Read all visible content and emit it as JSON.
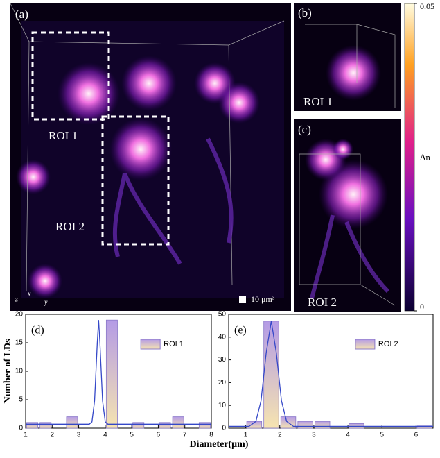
{
  "figure": {
    "panels": {
      "a": "(a)",
      "b": "(b)",
      "c": "(c)"
    },
    "roi_labels": {
      "a1": "ROI 1",
      "a2": "ROI 2",
      "b": "ROI 1",
      "c": "ROI 2"
    },
    "axes_letters": {
      "z": "z",
      "x": "x",
      "y": "y"
    },
    "scale": "10 μm³",
    "colorbar": {
      "label": "Δn",
      "lim": [
        0,
        0.05
      ],
      "ticks": [
        0,
        0.05
      ]
    },
    "ylabel": "Number of LDs",
    "xlabel": "Diameter(μm)"
  },
  "chart_data": [
    {
      "type": "histogram",
      "panel_label": "(d)",
      "bins": [
        1,
        1.5,
        2,
        2.5,
        3,
        3.5,
        4,
        4.5,
        5,
        5.5,
        6,
        6.5,
        7,
        7.5,
        8
      ],
      "series": [
        {
          "name": "ROI 1",
          "values": [
            1,
            1,
            0,
            2,
            0,
            0,
            19,
            0,
            1,
            0,
            1,
            2,
            0,
            1
          ]
        }
      ],
      "fit": {
        "x": [
          1,
          3.4,
          3.5,
          3.6,
          3.7,
          3.75,
          3.8,
          3.9,
          4.0,
          4.1,
          8
        ],
        "y": [
          0.7,
          0.7,
          1.1,
          4.8,
          15,
          19,
          15,
          4.8,
          1.1,
          0.7,
          0.7
        ]
      },
      "xlim": [
        1,
        8
      ],
      "xticks": [
        1,
        2,
        3,
        4,
        5,
        6,
        7,
        8
      ],
      "ylim": [
        0,
        20
      ],
      "yticks": [
        0,
        5,
        10,
        15,
        20
      ]
    },
    {
      "type": "histogram",
      "panel_label": "(e)",
      "bins": [
        0.5,
        1,
        1.5,
        2,
        2.5,
        3,
        3.5,
        4,
        4.5,
        5,
        5.5,
        6,
        6.5
      ],
      "series": [
        {
          "name": "ROI 2",
          "values": [
            0,
            3,
            47,
            5,
            3,
            3,
            0,
            2,
            0,
            0,
            0,
            1
          ]
        }
      ],
      "fit": {
        "x": [
          0.5,
          1.1,
          1.3,
          1.45,
          1.6,
          1.75,
          1.9,
          2.05,
          2.2,
          2.4,
          6.5
        ],
        "y": [
          0.8,
          0.8,
          3,
          12,
          33,
          47,
          33,
          12,
          3,
          0.8,
          0.8
        ]
      },
      "xlim": [
        0.5,
        6.5
      ],
      "xticks": [
        1,
        2,
        3,
        4,
        5,
        6
      ],
      "ylim": [
        0,
        50
      ],
      "yticks": [
        0,
        10,
        20,
        30,
        40,
        50
      ]
    }
  ]
}
